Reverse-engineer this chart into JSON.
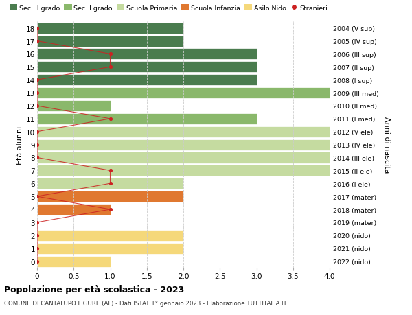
{
  "ages": [
    18,
    17,
    16,
    15,
    14,
    13,
    12,
    11,
    10,
    9,
    8,
    7,
    6,
    5,
    4,
    3,
    2,
    1,
    0
  ],
  "right_labels": [
    "2004 (V sup)",
    "2005 (IV sup)",
    "2006 (III sup)",
    "2007 (II sup)",
    "2008 (I sup)",
    "2009 (III med)",
    "2010 (II med)",
    "2011 (I med)",
    "2012 (V ele)",
    "2013 (IV ele)",
    "2014 (III ele)",
    "2015 (II ele)",
    "2016 (I ele)",
    "2017 (mater)",
    "2018 (mater)",
    "2019 (mater)",
    "2020 (nido)",
    "2021 (nido)",
    "2022 (nido)"
  ],
  "bar_values": [
    2,
    2,
    3,
    3,
    3,
    4,
    1,
    3,
    4,
    4,
    4,
    4,
    2,
    2,
    1,
    0,
    2,
    2,
    1
  ],
  "bar_colors": [
    "#4a7c4e",
    "#4a7c4e",
    "#4a7c4e",
    "#4a7c4e",
    "#4a7c4e",
    "#8ab86b",
    "#8ab86b",
    "#8ab86b",
    "#c5dba0",
    "#c5dba0",
    "#c5dba0",
    "#c5dba0",
    "#c5dba0",
    "#e07830",
    "#e07830",
    "#e07830",
    "#f5d87a",
    "#f5d87a",
    "#f5d87a"
  ],
  "stranieri_x": [
    0,
    0,
    1,
    1,
    0,
    0,
    0,
    1,
    0,
    0,
    0,
    1,
    1,
    0,
    1,
    0,
    0,
    0,
    0
  ],
  "legend_labels": [
    "Sec. II grado",
    "Sec. I grado",
    "Scuola Primaria",
    "Scuola Infanzia",
    "Asilo Nido",
    "Stranieri"
  ],
  "legend_colors": [
    "#4a7c4e",
    "#8ab86b",
    "#c5dba0",
    "#e07830",
    "#f5d87a",
    "#cc2222"
  ],
  "ylabel": "Età alunni",
  "right_ylabel": "Anni di nascita",
  "title": "Popolazione per età scolastica - 2023",
  "subtitle": "COMUNE DI CANTALUPO LIGURE (AL) - Dati ISTAT 1° gennaio 2023 - Elaborazione TUTTITALIA.IT",
  "xlim": [
    0,
    4.0
  ],
  "background_color": "#ffffff",
  "grid_color": "#cccccc",
  "bar_height": 0.85,
  "stranieri_color": "#cc2222",
  "stranieri_line_color": "#cc2222"
}
